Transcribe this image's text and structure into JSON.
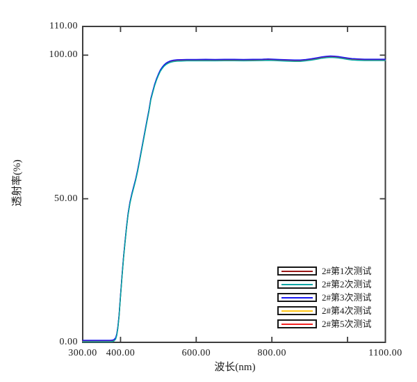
{
  "figure": {
    "background": "#ffffff",
    "axis_color": "#3d3d3d",
    "text_color": "#1a1a1a"
  },
  "chart_data": {
    "type": "line",
    "title": "",
    "xlabel": "波长(nm)",
    "ylabel": "透射率(%)",
    "xlim": [
      300,
      1100
    ],
    "ylim": [
      0,
      110
    ],
    "grid": "off",
    "legend_position": "bottom-right-inside",
    "x_ticks": [
      {
        "value": 300,
        "label": "300.00",
        "mark": false
      },
      {
        "value": 400,
        "label": "400.00",
        "mark": true
      },
      {
        "value": 600,
        "label": "600.00",
        "mark": true
      },
      {
        "value": 800,
        "label": "800.00",
        "mark": true
      },
      {
        "value": 1000,
        "label": "",
        "mark": true
      },
      {
        "value": 1100,
        "label": "1100.00",
        "mark": false
      }
    ],
    "y_ticks": [
      {
        "value": 110,
        "label": "110.00",
        "mark": false
      },
      {
        "value": 100,
        "label": "100.00",
        "mark": true
      },
      {
        "value": 50,
        "label": "50.00",
        "mark": true
      },
      {
        "value": 0,
        "label": "0.00",
        "mark": false
      }
    ],
    "series": [
      {
        "name": "2#第1次测试",
        "color": "#9A1818"
      },
      {
        "name": "2#第2次测试",
        "color": "#00A5A5"
      },
      {
        "name": "2#第3次测试",
        "color": "#1515EF"
      },
      {
        "name": "2#第4次测试",
        "color": "#FFC414"
      },
      {
        "name": "2#第5次测试",
        "color": "#F42222"
      }
    ],
    "series_note": "five repeated transmittance measurements of sample 2#, curves nearly identical / overlapping",
    "curve_points": [
      [
        300,
        0.3
      ],
      [
        320,
        0.3
      ],
      [
        340,
        0.3
      ],
      [
        355,
        0.3
      ],
      [
        365,
        0.3
      ],
      [
        372,
        0.3
      ],
      [
        378,
        0.35
      ],
      [
        383,
        0.6
      ],
      [
        387,
        1.2
      ],
      [
        390,
        2.5
      ],
      [
        393,
        5
      ],
      [
        396,
        9
      ],
      [
        400,
        16
      ],
      [
        404,
        23
      ],
      [
        408,
        29.5
      ],
      [
        412,
        35
      ],
      [
        416,
        40
      ],
      [
        420,
        44.5
      ],
      [
        425,
        48.5
      ],
      [
        430,
        51.5
      ],
      [
        435,
        54
      ],
      [
        440,
        56.5
      ],
      [
        445,
        59.5
      ],
      [
        450,
        63
      ],
      [
        455,
        66.5
      ],
      [
        460,
        70
      ],
      [
        465,
        73.5
      ],
      [
        470,
        77
      ],
      [
        475,
        80.5
      ],
      [
        480,
        84.5
      ],
      [
        485,
        87
      ],
      [
        490,
        89.4
      ],
      [
        495,
        91.4
      ],
      [
        500,
        93
      ],
      [
        505,
        94.4
      ],
      [
        510,
        95.4
      ],
      [
        515,
        96.2
      ],
      [
        520,
        96.8
      ],
      [
        525,
        97.2
      ],
      [
        530,
        97.5
      ],
      [
        535,
        97.7
      ],
      [
        540,
        97.85
      ],
      [
        550,
        98.0
      ],
      [
        560,
        98.05
      ],
      [
        575,
        98.1
      ],
      [
        600,
        98.1
      ],
      [
        625,
        98.15
      ],
      [
        650,
        98.1
      ],
      [
        675,
        98.15
      ],
      [
        700,
        98.15
      ],
      [
        725,
        98.1
      ],
      [
        750,
        98.15
      ],
      [
        775,
        98.2
      ],
      [
        790,
        98.25
      ],
      [
        805,
        98.2
      ],
      [
        820,
        98.1
      ],
      [
        840,
        98.0
      ],
      [
        860,
        97.9
      ],
      [
        875,
        97.9
      ],
      [
        890,
        98.1
      ],
      [
        905,
        98.35
      ],
      [
        920,
        98.7
      ],
      [
        932,
        99.0
      ],
      [
        945,
        99.2
      ],
      [
        955,
        99.3
      ],
      [
        965,
        99.25
      ],
      [
        975,
        99.1
      ],
      [
        988,
        98.85
      ],
      [
        1000,
        98.6
      ],
      [
        1012,
        98.4
      ],
      [
        1025,
        98.3
      ],
      [
        1045,
        98.2
      ],
      [
        1070,
        98.2
      ],
      [
        1100,
        98.2
      ]
    ]
  }
}
